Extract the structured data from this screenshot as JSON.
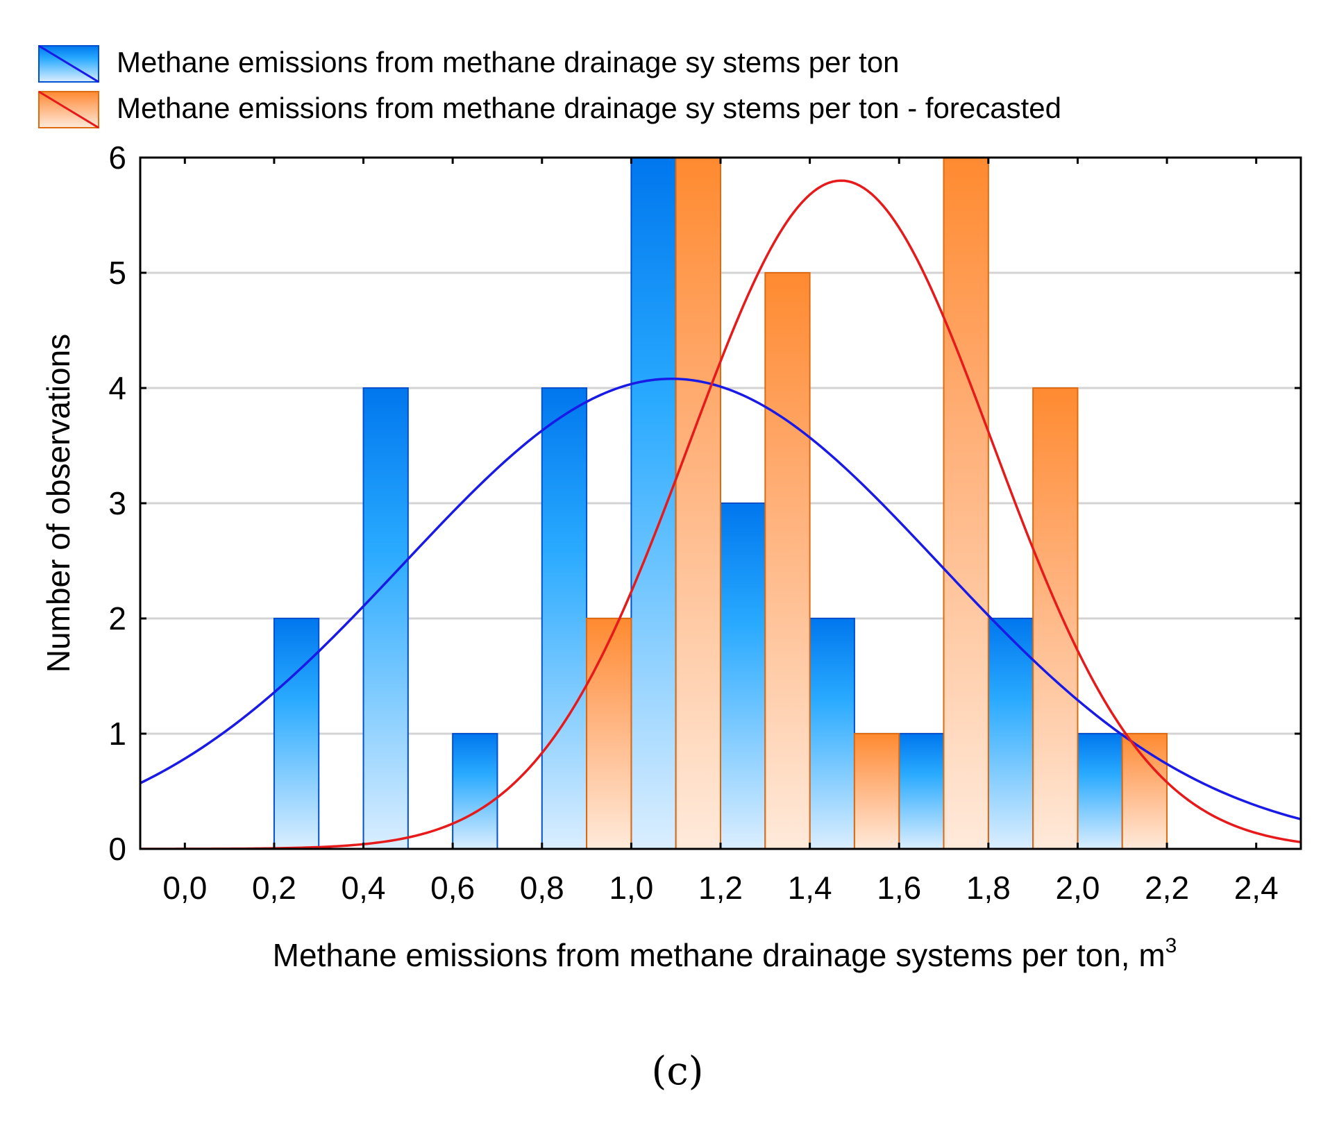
{
  "chart_data": {
    "type": "bar",
    "title": "",
    "panel_label": "(c)",
    "xlabel": "Methane emissions from methane drainage systems per ton, m",
    "xlabel_superscript": "3",
    "ylabel": "Number of observations",
    "xlim": [
      -0.1,
      2.5
    ],
    "ylim": [
      0,
      6
    ],
    "grid": true,
    "legend_position": "top-left",
    "x_ticks": [
      0.0,
      0.2,
      0.4,
      0.6,
      0.8,
      1.0,
      1.2,
      1.4,
      1.6,
      1.8,
      2.0,
      2.2,
      2.4
    ],
    "x_tick_labels": [
      "0,0",
      "0,2",
      "0,4",
      "0,6",
      "0,8",
      "1,0",
      "1,2",
      "1,4",
      "1,6",
      "1,8",
      "2,0",
      "2,2",
      "2,4"
    ],
    "y_ticks": [
      0,
      1,
      2,
      3,
      4,
      5,
      6
    ],
    "y_tick_labels": [
      "0",
      "1",
      "2",
      "3",
      "4",
      "5",
      "6"
    ],
    "bin_width": 0.2,
    "series": [
      {
        "name": "Methane emissions from methane drainage systems per ton",
        "color": "#1e90ff",
        "edge_color": "#0050d0",
        "bar_offset": "left",
        "bin_centers": [
          0.3,
          0.5,
          0.7,
          0.9,
          1.1,
          1.3,
          1.5,
          1.7,
          1.9,
          2.1
        ],
        "values": [
          2,
          4,
          1,
          4,
          6,
          3,
          2,
          1,
          2,
          1
        ],
        "curve": {
          "kind": "normal",
          "mean": 1.09,
          "sd": 0.6,
          "peak": 4.08,
          "color": "#1a1ae6"
        }
      },
      {
        "name": "Methane emissions from methane drainage systems per ton - forecasted",
        "color": "#ff9040",
        "edge_color": "#e06a10",
        "bar_offset": "right",
        "bin_centers": [
          0.9,
          1.1,
          1.3,
          1.5,
          1.7,
          1.9,
          2.1
        ],
        "values": [
          2,
          6,
          5,
          1,
          6,
          4,
          1
        ],
        "curve": {
          "kind": "normal",
          "mean": 1.47,
          "sd": 0.34,
          "peak": 5.8,
          "color": "#e61a1a"
        }
      }
    ]
  },
  "legend": {
    "items": [
      {
        "label": "Methane emissions from methane drainage sy stems per ton",
        "swatch_fill": "#1e90ff",
        "swatch_line": "#1a1ae6"
      },
      {
        "label": "Methane emissions from methane drainage sy stems per ton - forecasted",
        "swatch_fill": "#ff9040",
        "swatch_line": "#e61a1a"
      }
    ]
  },
  "colors": {
    "axis": "#000000",
    "grid": "#d3d3d3"
  }
}
